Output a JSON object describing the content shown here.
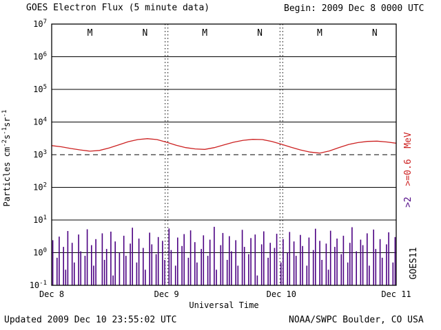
{
  "header": {
    "title": "GOES Electron Flux (5 minute data)",
    "begin": "Begin: 2009 Dec 8 0000 UTC"
  },
  "footer": {
    "updated": "Updated 2009 Dec 10 23:55:02 UTC",
    "source": "NOAA/SWPC Boulder, CO USA"
  },
  "chart_data": {
    "type": "line+bar",
    "title": "GOES Electron Flux (5 minute data)",
    "xlabel": "Universal Time",
    "ylabel_parts": [
      {
        "t": "Particles cm"
      },
      {
        "sup": "-2"
      },
      {
        "t": "s"
      },
      {
        "sup": "-1"
      },
      {
        "t": "sr"
      },
      {
        "sup": "-1"
      }
    ],
    "satellite": "GOES11",
    "x_hours_range": [
      0,
      72
    ],
    "y_log_range": [
      -1,
      7
    ],
    "y_exponents": [
      7,
      6,
      5,
      4,
      3,
      2,
      1,
      0,
      -1
    ],
    "x_tick_labels": [
      {
        "t": 0,
        "label": "Dec 8"
      },
      {
        "t": 24,
        "label": "Dec 9"
      },
      {
        "t": 48,
        "label": "Dec 10"
      },
      {
        "t": 72,
        "label": "Dec 11"
      }
    ],
    "day_boundaries_h": [
      24,
      48
    ],
    "threshold_exponent": 3,
    "threshold_flux": 1000,
    "grid": true,
    "top_markers": [
      {
        "t": 8,
        "label": "M"
      },
      {
        "t": 19.5,
        "label": "N"
      },
      {
        "t": 32,
        "label": "M"
      },
      {
        "t": 43.5,
        "label": "N"
      },
      {
        "t": 56,
        "label": "M"
      },
      {
        "t": 67.5,
        "label": "N"
      }
    ],
    "right_legend_parts": [
      {
        "text": ">2",
        "color": "#4b0082"
      },
      {
        "text": "  >=0.6",
        "color": "#cc2020"
      },
      {
        "text": "  MeV",
        "color": "#cc2020"
      }
    ],
    "colors": {
      "line": "#cc2020",
      "bars": "#4b0082",
      "marker": "#cc0000",
      "grid": "#000000"
    },
    "series": [
      {
        "name": ">=0.6 MeV",
        "type": "line",
        "x_hours": [
          0,
          2,
          4,
          6,
          8,
          10,
          12,
          14,
          16,
          18,
          20,
          22,
          24,
          26,
          28,
          30,
          32,
          34,
          36,
          38,
          40,
          42,
          44,
          46,
          48,
          50,
          52,
          54,
          56,
          58,
          60,
          62,
          64,
          66,
          68,
          70,
          72
        ],
        "flux": [
          1900,
          1750,
          1550,
          1400,
          1280,
          1350,
          1600,
          2000,
          2500,
          2900,
          3100,
          2900,
          2400,
          1950,
          1650,
          1500,
          1450,
          1650,
          2000,
          2400,
          2750,
          2950,
          2900,
          2550,
          2100,
          1700,
          1400,
          1200,
          1120,
          1300,
          1650,
          2050,
          2350,
          2550,
          2600,
          2450,
          2250
        ]
      },
      {
        "name": ">2 MeV",
        "type": "bar",
        "baseline": 0.1,
        "t_start": 0.225,
        "t_step": 0.45,
        "values": [
          2.4,
          0.1,
          0.7,
          3.1,
          0.1,
          1.5,
          0.3,
          4.6,
          0.1,
          2.0,
          0.5,
          0.1,
          3.6,
          1.1,
          0.1,
          0.8,
          5.2,
          0.1,
          1.7,
          0.4,
          2.6,
          0.1,
          0.1,
          3.9,
          0.6,
          1.3,
          0.1,
          4.4,
          0.2,
          2.2,
          0.1,
          1.0,
          0.1,
          3.3,
          0.8,
          0.1,
          1.9,
          5.8,
          0.1,
          0.5,
          2.7,
          0.1,
          1.4,
          0.3,
          0.1,
          4.1,
          1.8,
          0.1,
          0.9,
          3.0,
          0.1,
          2.3,
          0.6,
          0.1,
          5.5,
          1.2,
          0.1,
          0.4,
          2.9,
          0.1,
          1.6,
          3.7,
          0.1,
          0.7,
          4.8,
          0.1,
          2.1,
          0.5,
          0.1,
          1.3,
          3.4,
          0.1,
          0.8,
          2.5,
          0.1,
          6.2,
          0.3,
          0.1,
          1.7,
          4.0,
          0.1,
          0.6,
          3.2,
          1.1,
          0.1,
          2.4,
          0.4,
          0.1,
          5.0,
          1.5,
          0.1,
          0.9,
          2.8,
          0.1,
          3.6,
          0.2,
          0.1,
          1.8,
          4.5,
          0.1,
          0.7,
          2.0,
          0.1,
          1.4,
          3.8,
          0.1,
          0.5,
          2.6,
          0.1,
          1.0,
          4.3,
          0.1,
          2.2,
          0.8,
          0.1,
          3.5,
          1.6,
          0.1,
          0.4,
          2.9,
          0.1,
          1.2,
          5.4,
          0.1,
          2.3,
          0.6,
          0.1,
          1.9,
          0.3,
          4.7,
          0.1,
          1.5,
          2.7,
          0.1,
          0.9,
          3.3,
          0.1,
          0.5,
          2.0,
          6.0,
          0.1,
          1.1,
          0.1,
          2.5,
          1.7,
          0.1,
          3.9,
          0.4,
          0.1,
          5.1,
          1.3,
          0.1,
          2.6,
          0.7,
          0.1,
          1.8,
          4.2,
          0.1,
          0.5,
          3.0
        ]
      }
    ]
  }
}
